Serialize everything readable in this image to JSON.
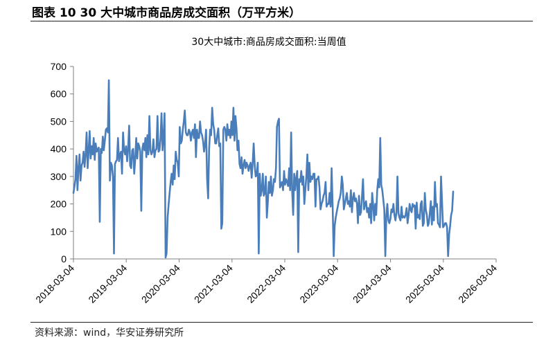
{
  "figure": {
    "caption": "图表 10 30 大中城市商品房成交面积（万平方米）",
    "source": "资料来源：wind，华安证券研究所"
  },
  "colors": {
    "series": "#4a7ebb",
    "axis": "#7f7f7f"
  },
  "chart_data": {
    "type": "line",
    "title": "30大中城市:商品房成交面积:当周值",
    "xlabel": "",
    "ylabel": "",
    "ylim": [
      0,
      700
    ],
    "yticks": [
      "0",
      "100",
      "200",
      "300",
      "400",
      "500",
      "600",
      "700"
    ],
    "xticks": [
      "2018-03-04",
      "2019-03-04",
      "2020-03-04",
      "2021-03-04",
      "2022-03-04",
      "2023-03-04",
      "2024-03-04",
      "2025-03-04",
      "2026-03-04"
    ],
    "grid": false,
    "legend": "none",
    "series": [
      {
        "name": "",
        "x_start": "2018-03-04",
        "x_step": "weekly",
        "values": [
          240,
          265,
          290,
          375,
          250,
          330,
          380,
          285,
          340,
          350,
          390,
          335,
          380,
          460,
          330,
          390,
          465,
          365,
          410,
          380,
          440,
          360,
          420,
          390,
          400,
          405,
          135,
          400,
          385,
          445,
          395,
          430,
          470,
          475,
          460,
          650,
          285,
          350,
          340,
          300,
          20,
          345,
          355,
          360,
          440,
          355,
          380,
          390,
          310,
          460,
          395,
          380,
          410,
          355,
          400,
          485,
          340,
          330,
          395,
          400,
          310,
          360,
          440,
          365,
          420,
          410,
          390,
          175,
          400,
          420,
          395,
          440,
          370,
          450,
          380,
          520,
          395,
          380,
          390,
          435,
          370,
          395,
          400,
          520,
          390,
          395,
          440,
          530,
          395,
          450,
          530,
          5,
          20,
          150,
          200,
          240,
          280,
          310,
          270,
          340,
          290,
          390,
          360,
          350,
          300,
          480,
          420,
          430,
          470,
          500,
          540,
          460,
          450,
          450,
          470,
          460,
          430,
          460,
          470,
          440,
          490,
          370,
          470,
          440,
          440,
          500,
          460,
          450,
          430,
          390,
          420,
          470,
          290,
          220,
          400,
          470,
          450,
          550,
          490,
          470,
          420,
          420,
          450,
          475,
          410,
          420,
          110,
          130,
          470,
          480,
          470,
          430,
          490,
          450,
          470,
          440,
          500,
          450,
          550,
          430,
          520,
          475,
          395,
          430,
          345,
          330,
          370,
          310,
          340,
          360,
          330,
          350,
          340,
          320,
          340,
          350,
          295,
          350,
          420,
          340,
          300,
          305,
          350,
          20,
          310,
          230,
          250,
          310,
          230,
          240,
          300,
          150,
          210,
          280,
          240,
          300,
          230,
          250,
          290,
          280,
          330,
          480,
          500,
          510,
          260,
          270,
          280,
          250,
          320,
          270,
          290,
          280,
          265,
          330,
          250,
          460,
          250,
          160,
          310,
          250,
          295,
          320,
          25,
          290,
          280,
          320,
          270,
          300,
          200,
          250,
          300,
          380,
          250,
          350,
          280,
          300,
          290,
          310,
          310,
          190,
          290,
          290,
          300,
          260,
          180,
          200,
          210,
          230,
          240,
          280,
          190,
          200,
          200,
          240,
          190,
          330,
          190,
          10,
          120,
          150,
          170,
          190,
          210,
          220,
          240,
          300,
          270,
          180,
          200,
          220,
          240,
          200,
          210,
          190,
          250,
          170,
          220,
          240,
          210,
          220,
          200,
          130,
          230,
          160,
          170,
          230,
          290,
          180,
          200,
          210,
          170,
          185,
          150,
          200,
          130,
          240,
          195,
          140,
          200,
          160,
          250,
          290,
          260,
          440,
          270,
          250,
          215,
          180,
          10,
          160,
          200,
          140,
          130,
          145,
          180,
          170,
          200,
          160,
          140,
          170,
          300,
          165,
          150,
          140,
          190,
          150,
          155,
          150,
          160,
          185,
          130,
          160,
          200,
          180,
          170,
          200,
          190,
          195,
          110,
          205,
          150,
          160,
          145,
          200,
          210,
          120,
          130,
          240,
          180,
          160,
          120,
          130,
          170,
          210,
          125,
          190,
          140,
          280,
          190,
          200,
          130,
          125,
          115,
          300,
          210,
          115,
          120,
          130,
          130,
          115,
          10,
          90,
          120,
          160,
          175,
          245
        ]
      }
    ]
  }
}
